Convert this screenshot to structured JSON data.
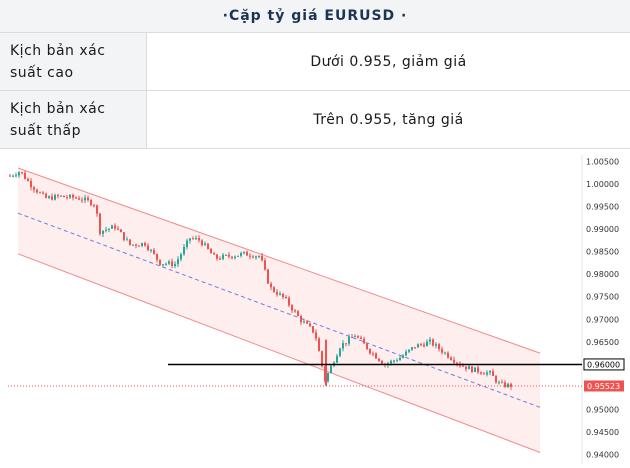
{
  "title": "·Cặp  tỷ  giá  EURUSD  ·",
  "rows": [
    {
      "label": "Kịch bản xác suất cao",
      "value": "Dưới 0.955, giảm giá"
    },
    {
      "label": "Kịch bản xác suất thấp",
      "value": "Trên 0.955, tăng giá"
    }
  ],
  "chart_data": {
    "type": "candlestick",
    "y_ticks": [
      "1.00500",
      "1.00000",
      "0.99500",
      "0.99000",
      "0.98500",
      "0.98000",
      "0.97500",
      "0.97000",
      "0.96500",
      "0.96000",
      "0.95500",
      "0.95000",
      "0.94500",
      "0.94000"
    ],
    "ylim": [
      0.9395,
      1.0055
    ],
    "horizontal_line": {
      "value": 0.96,
      "label": "0.96000"
    },
    "current_price": {
      "value": 0.95523,
      "label": "0.95523"
    },
    "channel": {
      "upper_start": 1.0035,
      "upper_end": 0.9625,
      "mid_start": 0.9935,
      "mid_end": 0.9505,
      "lower_start": 0.9845,
      "lower_end": 0.9405
    },
    "colors": {
      "up": "#26a69a",
      "down": "#ef5350",
      "channel_fill": "#fde3e3",
      "channel_line": "#f08c8c",
      "mid_line": "#6c7fe0",
      "hline": "#000000",
      "price_tag": "#ef5350"
    }
  }
}
